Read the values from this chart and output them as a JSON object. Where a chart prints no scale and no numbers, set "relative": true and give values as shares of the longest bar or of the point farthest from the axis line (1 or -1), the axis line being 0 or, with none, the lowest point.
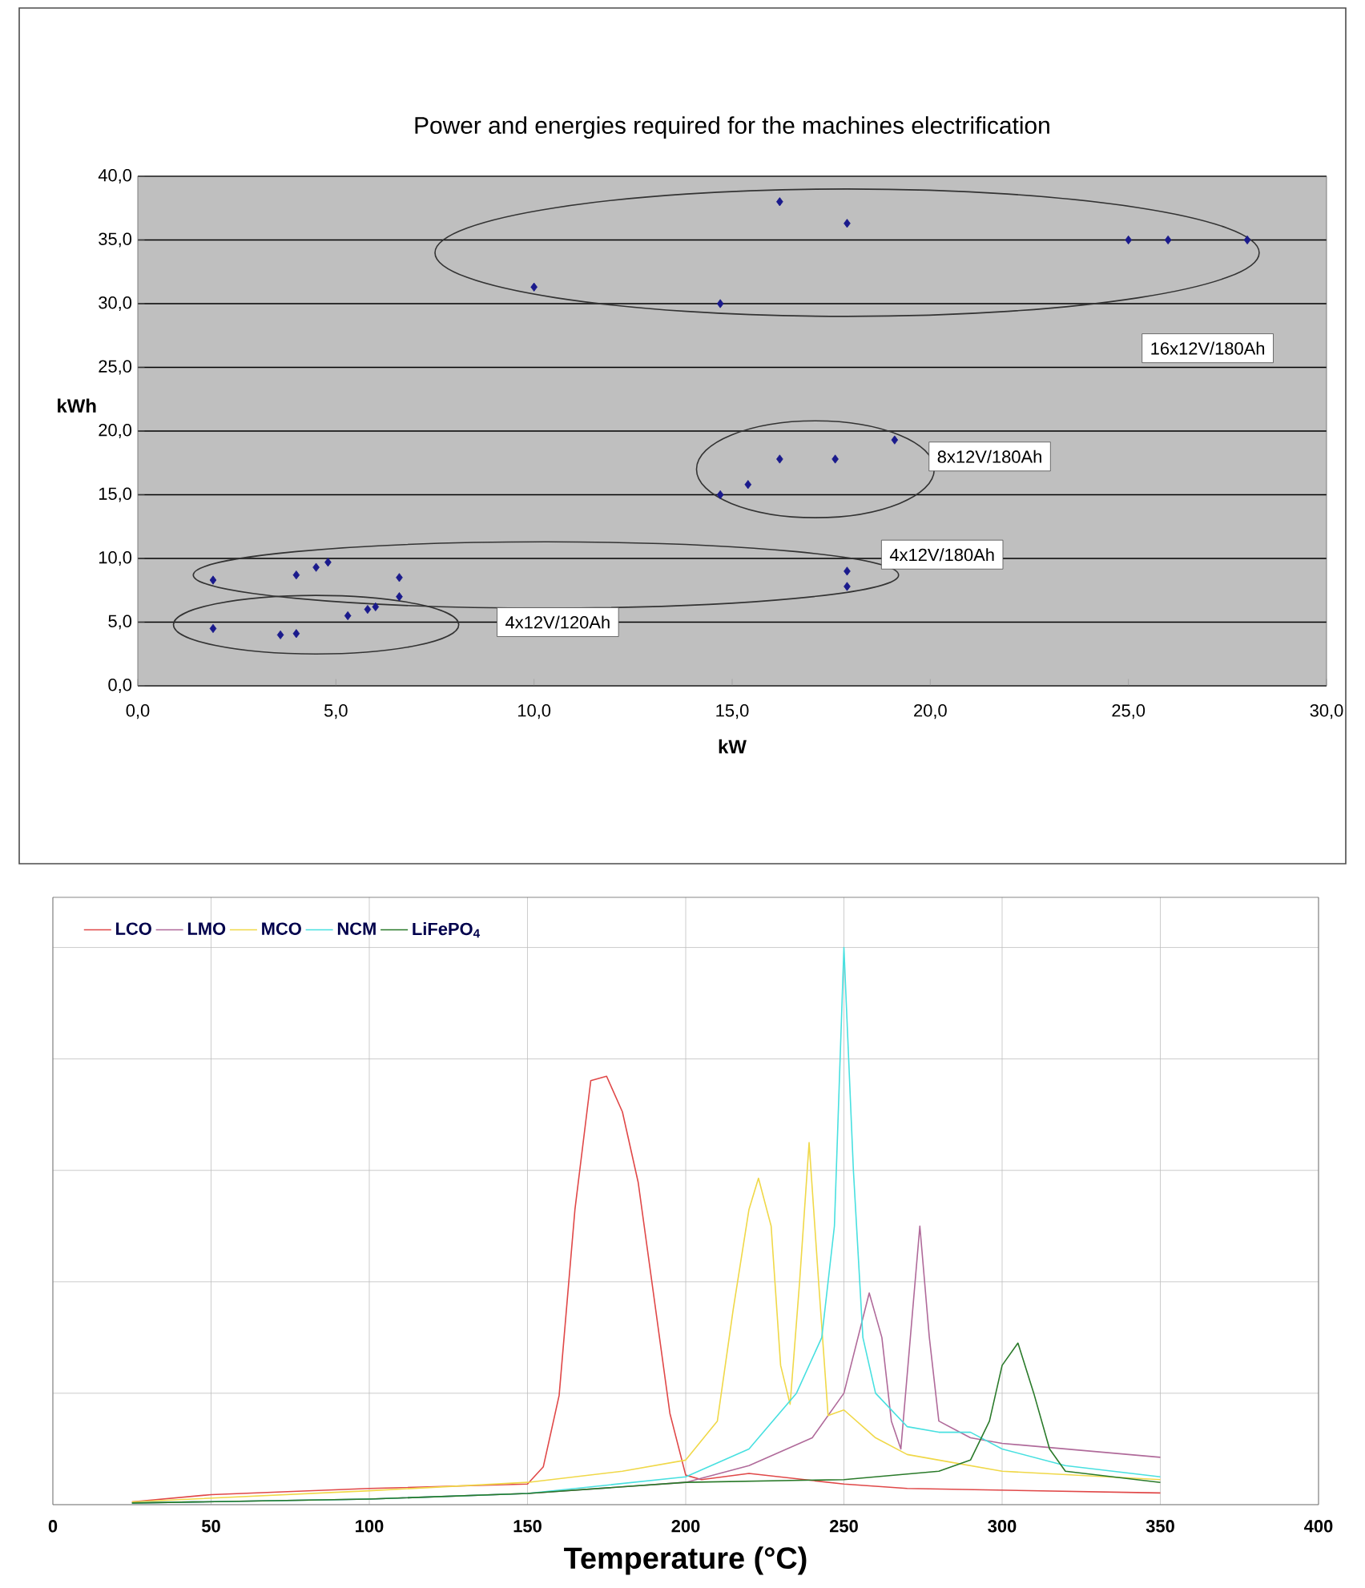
{
  "chart_data": [
    {
      "type": "scatter",
      "title": "Power and energies required for the machines electrification",
      "xlabel": "kW",
      "ylabel": "kWh",
      "x": [
        10,
        14.7,
        16.2,
        17.9,
        25,
        26,
        28,
        14.7,
        15.4,
        16.2,
        17.6,
        19.1,
        1.9,
        4,
        4.5,
        4.8,
        6.6,
        6.6,
        5.3,
        5.8,
        6,
        17.9,
        17.9,
        1.9,
        3.6,
        4
      ],
      "series": [
        {
          "color": "#1a1a8c",
          "values": [
            31.3,
            30,
            38,
            36.3,
            35,
            35,
            35,
            15,
            15.8,
            17.8,
            17.8,
            19.3,
            8.3,
            8.7,
            9.3,
            9.7,
            8.5,
            7,
            5.5,
            6,
            6.2,
            9,
            7.8,
            4.5,
            4,
            4.1
          ]
        }
      ],
      "xlim": [
        0,
        30
      ],
      "ylim": [
        0,
        40
      ],
      "xticks": [
        {
          "value": 0,
          "label": "0,0"
        },
        {
          "value": 5,
          "label": "5,0"
        },
        {
          "value": 10,
          "label": "10,0"
        },
        {
          "value": 15,
          "label": "15,0"
        },
        {
          "value": 20,
          "label": "20,0"
        },
        {
          "value": 25,
          "label": "25,0"
        },
        {
          "value": 30,
          "label": "30,0"
        }
      ],
      "yticks": [
        {
          "value": 0,
          "label": "0,0"
        },
        {
          "value": 5,
          "label": "5,0"
        },
        {
          "value": 10,
          "label": "10,0"
        },
        {
          "value": 15,
          "label": "15,0"
        },
        {
          "value": 20,
          "label": "20,0"
        },
        {
          "value": 25,
          "label": "25,0"
        },
        {
          "value": 30,
          "label": "30,0"
        },
        {
          "value": 35,
          "label": "35,0"
        },
        {
          "value": 40,
          "label": "40,0"
        }
      ],
      "grid": "y",
      "marker": "diamond",
      "annotations": [
        "16x12V/180Ah",
        "8x12V/180Ah",
        "4x12V/180Ah",
        "4x12V/120Ah"
      ]
    },
    {
      "type": "line",
      "xlabel": "Temperature (°C)",
      "relative": true,
      "xlim": [
        0,
        400
      ],
      "xticks": [
        0,
        50,
        100,
        150,
        200,
        250,
        300,
        350,
        400
      ],
      "grid": true,
      "legend": "top left",
      "series": [
        {
          "name": "LCO",
          "color": "#e04848",
          "x": [
            25,
            50,
            100,
            150,
            155,
            160,
            165,
            170,
            175,
            180,
            185,
            190,
            195,
            200,
            205,
            220,
            250,
            270,
            350
          ],
          "values": [
            0.005,
            0.018,
            0.029,
            0.037,
            0.068,
            0.196,
            0.53,
            0.761,
            0.769,
            0.705,
            0.578,
            0.371,
            0.164,
            0.053,
            0.045,
            0.056,
            0.037,
            0.029,
            0.021
          ]
        },
        {
          "name": "LMO",
          "color": "#b06a9a",
          "x": [
            25,
            100,
            150,
            200,
            220,
            240,
            250,
            258,
            262,
            265,
            268,
            271,
            274,
            277,
            280,
            290,
            300,
            320,
            350
          ],
          "values": [
            0.003,
            0.01,
            0.02,
            0.04,
            0.07,
            0.12,
            0.2,
            0.38,
            0.3,
            0.15,
            0.1,
            0.3,
            0.5,
            0.3,
            0.15,
            0.12,
            0.11,
            0.1,
            0.085
          ]
        },
        {
          "name": "MCO",
          "color": "#f0d848",
          "x": [
            25,
            100,
            150,
            180,
            200,
            210,
            215,
            220,
            223,
            227,
            230,
            233,
            236,
            239,
            242,
            245,
            250,
            260,
            270,
            280,
            300,
            350
          ],
          "values": [
            0.005,
            0.025,
            0.04,
            0.06,
            0.08,
            0.15,
            0.35,
            0.53,
            0.586,
            0.5,
            0.25,
            0.18,
            0.4,
            0.65,
            0.4,
            0.16,
            0.17,
            0.12,
            0.09,
            0.08,
            0.06,
            0.045
          ]
        },
        {
          "name": "NCM",
          "color": "#48e0e0",
          "x": [
            25,
            100,
            150,
            200,
            220,
            235,
            243,
            247,
            250,
            253,
            256,
            260,
            270,
            280,
            290,
            300,
            320,
            350
          ],
          "values": [
            0.003,
            0.01,
            0.02,
            0.05,
            0.1,
            0.2,
            0.3,
            0.5,
            1.0,
            0.6,
            0.3,
            0.2,
            0.14,
            0.13,
            0.13,
            0.1,
            0.07,
            0.05
          ]
        },
        {
          "name": "LiFePO$_{4}$",
          "color": "#2a7a2a",
          "x": [
            25,
            100,
            150,
            200,
            250,
            280,
            290,
            296,
            300,
            305,
            310,
            315,
            320,
            350
          ],
          "values": [
            0.003,
            0.01,
            0.02,
            0.04,
            0.045,
            0.06,
            0.08,
            0.15,
            0.25,
            0.29,
            0.2,
            0.1,
            0.06,
            0.04
          ]
        }
      ]
    }
  ]
}
